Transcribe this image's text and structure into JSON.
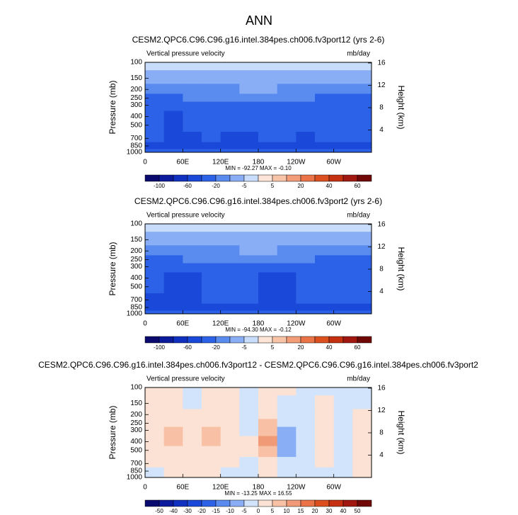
{
  "title": "ANN",
  "chart_data": [
    {
      "type": "contour",
      "title": "CESM2.QPC6.C96.C96.g16.intel.384pes.ch006.fv3port12 (yrs 2-6)",
      "left_label": "Vertical pressure velocity",
      "units": "mb/day",
      "ylabel": "Pressure (mb)",
      "y2label": "Height (km)",
      "log_y": true,
      "xlim": [
        0,
        360
      ],
      "xticks": [
        0,
        {
          "value": 60,
          "label": "60E"
        },
        {
          "value": 120,
          "label": "120E"
        },
        180,
        {
          "value": 240,
          "label": "120W"
        },
        {
          "value": 300,
          "label": "60W"
        }
      ],
      "ylim": [
        1000,
        100
      ],
      "yticks": [
        100,
        150,
        200,
        250,
        300,
        400,
        500,
        700,
        850,
        1000
      ],
      "y2ticks": [
        4,
        8,
        12,
        16
      ],
      "x": [
        15,
        45,
        75,
        105,
        135,
        165,
        195,
        225,
        255,
        285,
        315,
        345
      ],
      "y": [
        100,
        150,
        200,
        250,
        300,
        400,
        500,
        700,
        850,
        1000
      ],
      "z": [
        [
          -3,
          -3,
          -3,
          -3,
          -3,
          -3,
          -3,
          -3,
          -3,
          -3,
          -3,
          -3
        ],
        [
          -8,
          -8,
          -8,
          -8,
          -7,
          -6,
          -6,
          -7,
          -8,
          -8,
          -8,
          -8
        ],
        [
          -15,
          -15,
          -12,
          -12,
          -12,
          -10,
          -10,
          -12,
          -12,
          -15,
          -15,
          -15
        ],
        [
          -25,
          -25,
          -18,
          -18,
          -18,
          -15,
          -15,
          -18,
          -18,
          -25,
          -25,
          -25
        ],
        [
          -30,
          -30,
          -30,
          -30,
          -30,
          -25,
          -30,
          -30,
          -30,
          -30,
          -30,
          -30
        ],
        [
          -30,
          -45,
          -30,
          -30,
          -30,
          -30,
          -30,
          -30,
          -30,
          -30,
          -30,
          -30
        ],
        [
          -30,
          -50,
          -35,
          -30,
          -30,
          -30,
          -30,
          -30,
          -30,
          -30,
          -30,
          -30
        ],
        [
          -30,
          -50,
          -45,
          -30,
          -45,
          -45,
          -30,
          -30,
          -45,
          -30,
          -30,
          -30
        ],
        [
          -45,
          -45,
          -45,
          -45,
          -45,
          -45,
          -45,
          -45,
          -45,
          -45,
          -45,
          -45
        ],
        [
          -25,
          -25,
          -25,
          -25,
          -25,
          -25,
          -25,
          -25,
          -25,
          -25,
          -25,
          -25
        ]
      ],
      "stats": "MIN = -92.27  MAX = -0.10",
      "cbar_levels": [
        -100,
        -80,
        -60,
        -40,
        -20,
        -10,
        -5,
        0,
        5,
        10,
        20,
        30,
        40,
        50,
        60
      ],
      "cbar_ticks": [
        -100,
        -60,
        -20,
        -5,
        5,
        20,
        40,
        60
      ],
      "cbar_colors": [
        "#0a0a6e",
        "#0c1a9c",
        "#1030c0",
        "#1a48d8",
        "#2c62e8",
        "#5a8cf0",
        "#8aaef5",
        "#c8dcfb",
        "#fde4d6",
        "#f8c4a8",
        "#f29c78",
        "#ea7448",
        "#dc5020",
        "#c43010",
        "#a01810",
        "#700808"
      ]
    },
    {
      "type": "contour",
      "title": "CESM2.QPC6.C96.C96.g16.intel.384pes.ch006.fv3port2 (yrs 2-6)",
      "left_label": "Vertical pressure velocity",
      "units": "mb/day",
      "ylabel": "Pressure (mb)",
      "y2label": "Height (km)",
      "log_y": true,
      "xlim": [
        0,
        360
      ],
      "xticks": [
        0,
        {
          "value": 60,
          "label": "60E"
        },
        {
          "value": 120,
          "label": "120E"
        },
        180,
        {
          "value": 240,
          "label": "120W"
        },
        {
          "value": 300,
          "label": "60W"
        }
      ],
      "ylim": [
        1000,
        100
      ],
      "yticks": [
        100,
        150,
        200,
        250,
        300,
        400,
        500,
        700,
        850,
        1000
      ],
      "y2ticks": [
        4,
        8,
        12,
        16
      ],
      "x": [
        15,
        45,
        75,
        105,
        135,
        165,
        195,
        225,
        255,
        285,
        315,
        345
      ],
      "y": [
        100,
        150,
        200,
        250,
        300,
        400,
        500,
        700,
        850,
        1000
      ],
      "z": [
        [
          -3,
          -3,
          -3,
          -3,
          -3,
          -3,
          -3,
          -3,
          -3,
          -3,
          -3,
          -3
        ],
        [
          -8,
          -8,
          -8,
          -8,
          -7,
          -6,
          -6,
          -7,
          -8,
          -8,
          -8,
          -8
        ],
        [
          -15,
          -15,
          -12,
          -12,
          -12,
          -10,
          -10,
          -12,
          -12,
          -15,
          -15,
          -15
        ],
        [
          -25,
          -25,
          -18,
          -18,
          -18,
          -15,
          -15,
          -18,
          -18,
          -25,
          -25,
          -25
        ],
        [
          -30,
          -30,
          -30,
          -30,
          -30,
          -25,
          -30,
          -30,
          -30,
          -30,
          -30,
          -30
        ],
        [
          -30,
          -45,
          -45,
          -30,
          -30,
          -30,
          -45,
          -45,
          -30,
          -30,
          -30,
          -30
        ],
        [
          -30,
          -45,
          -45,
          -30,
          -30,
          -30,
          -45,
          -45,
          -30,
          -30,
          -30,
          -30
        ],
        [
          -45,
          -45,
          -45,
          -30,
          -30,
          -35,
          -45,
          -45,
          -30,
          -30,
          -30,
          -30
        ],
        [
          -45,
          -45,
          -45,
          -45,
          -45,
          -45,
          -45,
          -45,
          -45,
          -45,
          -45,
          -45
        ],
        [
          -25,
          -25,
          -25,
          -25,
          -25,
          -25,
          -25,
          -25,
          -25,
          -25,
          -25,
          -25
        ]
      ],
      "stats": "MIN = -94.30  MAX = -0.12",
      "cbar_levels": [
        -100,
        -80,
        -60,
        -40,
        -20,
        -10,
        -5,
        0,
        5,
        10,
        20,
        30,
        40,
        50,
        60
      ],
      "cbar_ticks": [
        -100,
        -60,
        -20,
        -5,
        5,
        20,
        40,
        60
      ],
      "cbar_colors": [
        "#0a0a6e",
        "#0c1a9c",
        "#1030c0",
        "#1a48d8",
        "#2c62e8",
        "#5a8cf0",
        "#8aaef5",
        "#c8dcfb",
        "#fde4d6",
        "#f8c4a8",
        "#f29c78",
        "#ea7448",
        "#dc5020",
        "#c43010",
        "#a01810",
        "#700808"
      ]
    },
    {
      "type": "contour",
      "title": "CESM2.QPC6.C96.C96.g16.intel.384pes.ch006.fv3port12 - CESM2.QPC6.C96.C96.g16.intel.384pes.ch006.fv3port2",
      "left_label": "Vertical pressure velocity",
      "units": "mb/day",
      "ylabel": "Pressure (mb)",
      "y2label": "Height (km)",
      "log_y": true,
      "xlim": [
        0,
        360
      ],
      "xticks": [
        0,
        {
          "value": 60,
          "label": "60E"
        },
        {
          "value": 120,
          "label": "120E"
        },
        180,
        {
          "value": 240,
          "label": "120W"
        },
        {
          "value": 300,
          "label": "60W"
        }
      ],
      "ylim": [
        1000,
        100
      ],
      "yticks": [
        100,
        150,
        200,
        250,
        300,
        400,
        500,
        700,
        850,
        1000
      ],
      "y2ticks": [
        4,
        8,
        12,
        16
      ],
      "x": [
        15,
        45,
        75,
        105,
        135,
        165,
        195,
        225,
        255,
        285,
        315,
        345
      ],
      "y": [
        100,
        150,
        200,
        250,
        300,
        400,
        500,
        700,
        850,
        1000
      ],
      "z": [
        [
          2,
          2,
          -2,
          2,
          2,
          -2,
          2,
          2,
          -2,
          -2,
          -2,
          -2
        ],
        [
          2,
          2,
          -2,
          2,
          2,
          -2,
          2,
          -2,
          -2,
          2,
          -2,
          -2
        ],
        [
          2,
          2,
          2,
          2,
          2,
          -2,
          3,
          -2,
          -2,
          2,
          -2,
          2
        ],
        [
          2,
          3,
          2,
          2,
          2,
          -2,
          6,
          -3,
          -2,
          2,
          -2,
          2
        ],
        [
          2,
          6,
          2,
          6,
          2,
          -2,
          8,
          -6,
          -2,
          2,
          -2,
          2
        ],
        [
          2,
          6,
          2,
          6,
          2,
          2,
          11,
          -8,
          -2,
          2,
          -2,
          2
        ],
        [
          2,
          3,
          2,
          3,
          2,
          2,
          8,
          -6,
          -2,
          2,
          -2,
          2
        ],
        [
          2,
          2,
          2,
          2,
          2,
          -2,
          3,
          -2,
          -2,
          2,
          -2,
          2
        ],
        [
          -2,
          2,
          2,
          2,
          -2,
          -2,
          2,
          -2,
          -2,
          -2,
          -2,
          2
        ],
        [
          -2,
          2,
          2,
          2,
          -2,
          -2,
          2,
          -2,
          -2,
          -2,
          -2,
          2
        ]
      ],
      "stats": "MIN = -13.25  MAX = 16.55",
      "cbar_levels": [
        -50,
        -40,
        -30,
        -20,
        -15,
        -10,
        -5,
        0,
        5,
        10,
        15,
        20,
        30,
        40,
        50
      ],
      "cbar_ticks": [
        -50,
        -40,
        -30,
        -20,
        -15,
        -10,
        -5,
        0,
        5,
        10,
        15,
        20,
        30,
        40,
        50
      ],
      "cbar_colors": [
        "#0a0a6e",
        "#0c1a9c",
        "#1030c0",
        "#1a48d8",
        "#2c62e8",
        "#5a8cf0",
        "#8aaef5",
        "#d2e4fb",
        "#fbe2d4",
        "#f8c0a4",
        "#f09a78",
        "#ea7448",
        "#dc5020",
        "#c43010",
        "#a01810",
        "#700808"
      ]
    }
  ]
}
